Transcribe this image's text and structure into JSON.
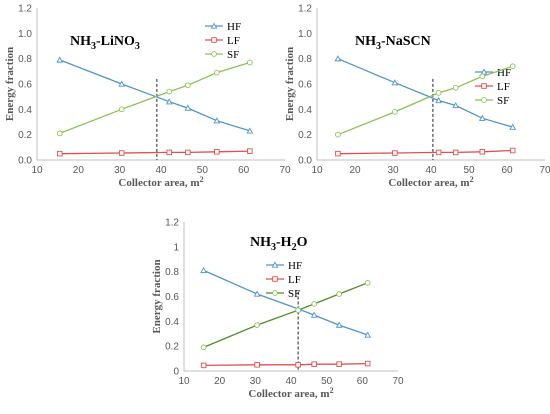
{
  "colors": {
    "HF": "#4f95cc",
    "LF": "#e0504d",
    "SF": "#8cc257",
    "SF_line": "#4e8c27",
    "axis": "#bfbfbf",
    "tick": "#595959"
  },
  "chart_data": [
    {
      "type": "line",
      "title_pre": "NH",
      "title_sub1": "3",
      "title_mid": "-LiNO",
      "title_sub2": "3",
      "title_post": "",
      "xlabel": "Collector area, m",
      "xlabel_sup": "2",
      "ylabel": "Energy fraction",
      "xlim": [
        10,
        70
      ],
      "ylim": [
        0,
        1.2
      ],
      "xticks": [
        "10",
        "20",
        "30",
        "40",
        "50",
        "60",
        "70"
      ],
      "yticks": [
        "0.0",
        "0.2",
        "0.4",
        "0.6",
        "0.8",
        "1.0",
        "1.2"
      ],
      "legend": "right",
      "vline_x": 39,
      "series": [
        {
          "name": "HF",
          "x": [
            15.5,
            30.5,
            42,
            46.5,
            53.5,
            61.5
          ],
          "y": [
            0.79,
            0.6,
            0.46,
            0.41,
            0.31,
            0.23
          ]
        },
        {
          "name": "LF",
          "x": [
            15.5,
            30.5,
            42,
            46.5,
            53.5,
            61.5
          ],
          "y": [
            0.05,
            0.055,
            0.06,
            0.06,
            0.065,
            0.07
          ]
        },
        {
          "name": "SF",
          "x": [
            15.5,
            30.5,
            42,
            46.5,
            53.5,
            61.5
          ],
          "y": [
            0.21,
            0.4,
            0.54,
            0.59,
            0.69,
            0.77
          ]
        }
      ]
    },
    {
      "type": "line",
      "title_pre": "NH",
      "title_sub1": "3",
      "title_mid": "-NaSCN",
      "title_sub2": "",
      "title_post": "",
      "xlabel": "Collector area, m",
      "xlabel_sup": "2",
      "ylabel": "Energy fraction",
      "xlim": [
        10,
        70
      ],
      "ylim": [
        0,
        1.2
      ],
      "xticks": [
        "10",
        "20",
        "30",
        "40",
        "50",
        "60",
        "70"
      ],
      "yticks": [
        "0.0",
        "0.2",
        "0.4",
        "0.6",
        "0.8",
        "1.0",
        "1.2"
      ],
      "legend": "right",
      "vline_x": 40.5,
      "series": [
        {
          "name": "HF",
          "x": [
            15.5,
            30.5,
            42,
            46.5,
            53.5,
            61.5
          ],
          "y": [
            0.8,
            0.61,
            0.47,
            0.43,
            0.33,
            0.26
          ]
        },
        {
          "name": "LF",
          "x": [
            15.5,
            30.5,
            42,
            46.5,
            53.5,
            61.5
          ],
          "y": [
            0.05,
            0.055,
            0.06,
            0.06,
            0.065,
            0.075
          ]
        },
        {
          "name": "SF",
          "x": [
            15.5,
            30.5,
            42,
            46.5,
            53.5,
            61.5
          ],
          "y": [
            0.2,
            0.38,
            0.53,
            0.57,
            0.66,
            0.74
          ]
        }
      ]
    },
    {
      "type": "line",
      "title_pre": "NH",
      "title_sub1": "3",
      "title_mid": "-H",
      "title_sub2": "2",
      "title_post": "O",
      "xlabel": "Collector area, m",
      "xlabel_sup": "2",
      "ylabel": "Energy fraction",
      "xlim": [
        10,
        70
      ],
      "ylim": [
        0,
        1.2
      ],
      "xticks": [
        "10",
        "20",
        "30",
        "40",
        "50",
        "60",
        "70"
      ],
      "yticks": [
        "0",
        "0.2",
        "0.4",
        "0.6",
        "0.8",
        "1",
        "1.2"
      ],
      "legend": "center-top",
      "vline_x": 42,
      "series": [
        {
          "name": "HF",
          "x": [
            15.5,
            30.5,
            42,
            46.5,
            53.5,
            61.5
          ],
          "y": [
            0.81,
            0.62,
            0.5,
            0.45,
            0.37,
            0.29
          ]
        },
        {
          "name": "LF",
          "x": [
            15.5,
            30.5,
            42,
            46.5,
            53.5,
            61.5
          ],
          "y": [
            0.045,
            0.05,
            0.05,
            0.055,
            0.055,
            0.06
          ]
        },
        {
          "name": "SF",
          "x": [
            15.5,
            30.5,
            42,
            46.5,
            53.5,
            61.5
          ],
          "y": [
            0.19,
            0.37,
            0.49,
            0.54,
            0.62,
            0.71
          ]
        }
      ]
    }
  ]
}
